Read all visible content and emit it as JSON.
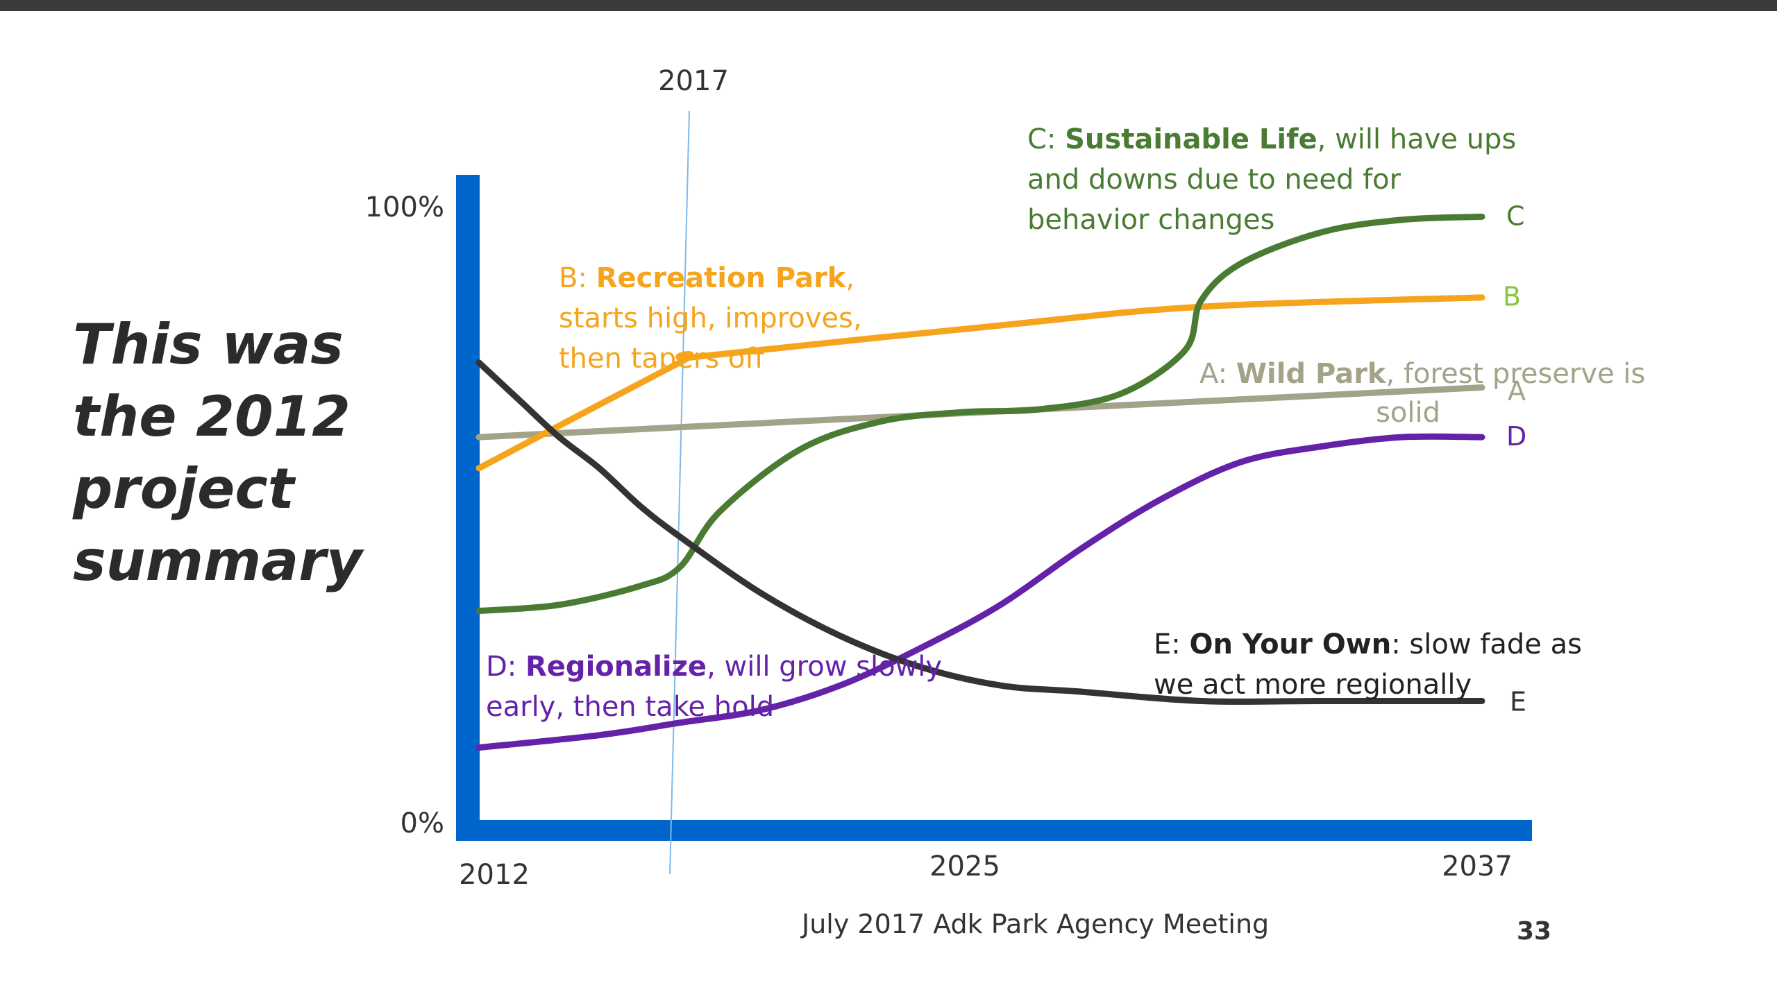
{
  "slide": {
    "title_lines": [
      "This was",
      "the 2012",
      "project",
      "summary"
    ],
    "footer": "July 2017 Adk Park Agency Meeting",
    "page_number": "33"
  },
  "chart_data": {
    "type": "line",
    "x_ticks": [
      "2012",
      "2025",
      "2037"
    ],
    "y_ticks": [
      "0%",
      "100%"
    ],
    "xlim": [
      2012,
      2037
    ],
    "ylim": [
      0,
      100
    ],
    "marker_line": {
      "label": "2017",
      "x": 2017
    },
    "colors": {
      "axis": "#0066cc",
      "marker": "#7fb8e8",
      "A": "#a3a38a",
      "B": "#f5a41c",
      "C": "#4a7b32",
      "D": "#6322a8",
      "E": "#333333",
      "B_end_label": "#8cc63f"
    },
    "series": [
      {
        "name": "A",
        "end_label": "A",
        "note": {
          "title": "Wild Park",
          "lines": [
            "A: Wild Park, forest preserve is",
            "solid"
          ]
        },
        "x": [
          2012,
          2037
        ],
        "y": [
          62,
          70
        ]
      },
      {
        "name": "B",
        "end_label": "B",
        "note": {
          "title": "Recreation Park",
          "lines": [
            "B: Recreation Park,",
            "starts high, improves,",
            "then tapers off"
          ]
        },
        "x": [
          2012,
          2017,
          2017.5,
          2025,
          2030,
          2037
        ],
        "y": [
          57,
          74,
          75,
          80,
          83,
          84.5
        ]
      },
      {
        "name": "C",
        "end_label": "C",
        "note": {
          "title": "Sustainable Life",
          "lines": [
            "C: Sustainable Life, will have ups",
            "and downs due to need for",
            "behavior changes"
          ]
        },
        "x": [
          2012,
          2014,
          2016,
          2017,
          2018,
          2020,
          2022,
          2024,
          2026,
          2028,
          2029.6,
          2030,
          2031,
          2033,
          2035,
          2037
        ],
        "y": [
          34,
          35,
          38,
          41,
          50,
          60,
          64.5,
          66,
          66.5,
          69,
          76,
          84,
          90,
          95,
          97,
          97.5
        ]
      },
      {
        "name": "D",
        "end_label": "D",
        "note": {
          "title": "Regionalize",
          "lines": [
            "D: Regionalize, will grow slowly",
            "early, then take hold"
          ]
        },
        "x": [
          2012,
          2015,
          2017,
          2019,
          2021,
          2023,
          2025,
          2027,
          2029,
          2031,
          2033,
          2035,
          2037
        ],
        "y": [
          12,
          14,
          16,
          18,
          22,
          28,
          35,
          44,
          52,
          58,
          60.5,
          62,
          62
        ]
      },
      {
        "name": "E",
        "end_label": "E",
        "note": {
          "title": "On Your Own",
          "lines": [
            "E: On Your Own:  slow fade as",
            "we act more regionally"
          ]
        },
        "x": [
          2012,
          2013,
          2014,
          2015,
          2016,
          2017,
          2019,
          2021,
          2023,
          2025,
          2027,
          2030,
          2033,
          2037
        ],
        "y": [
          74,
          68,
          62,
          57,
          51,
          46,
          37,
          30,
          25,
          22,
          21,
          19.5,
          19.5,
          19.5
        ]
      }
    ]
  }
}
